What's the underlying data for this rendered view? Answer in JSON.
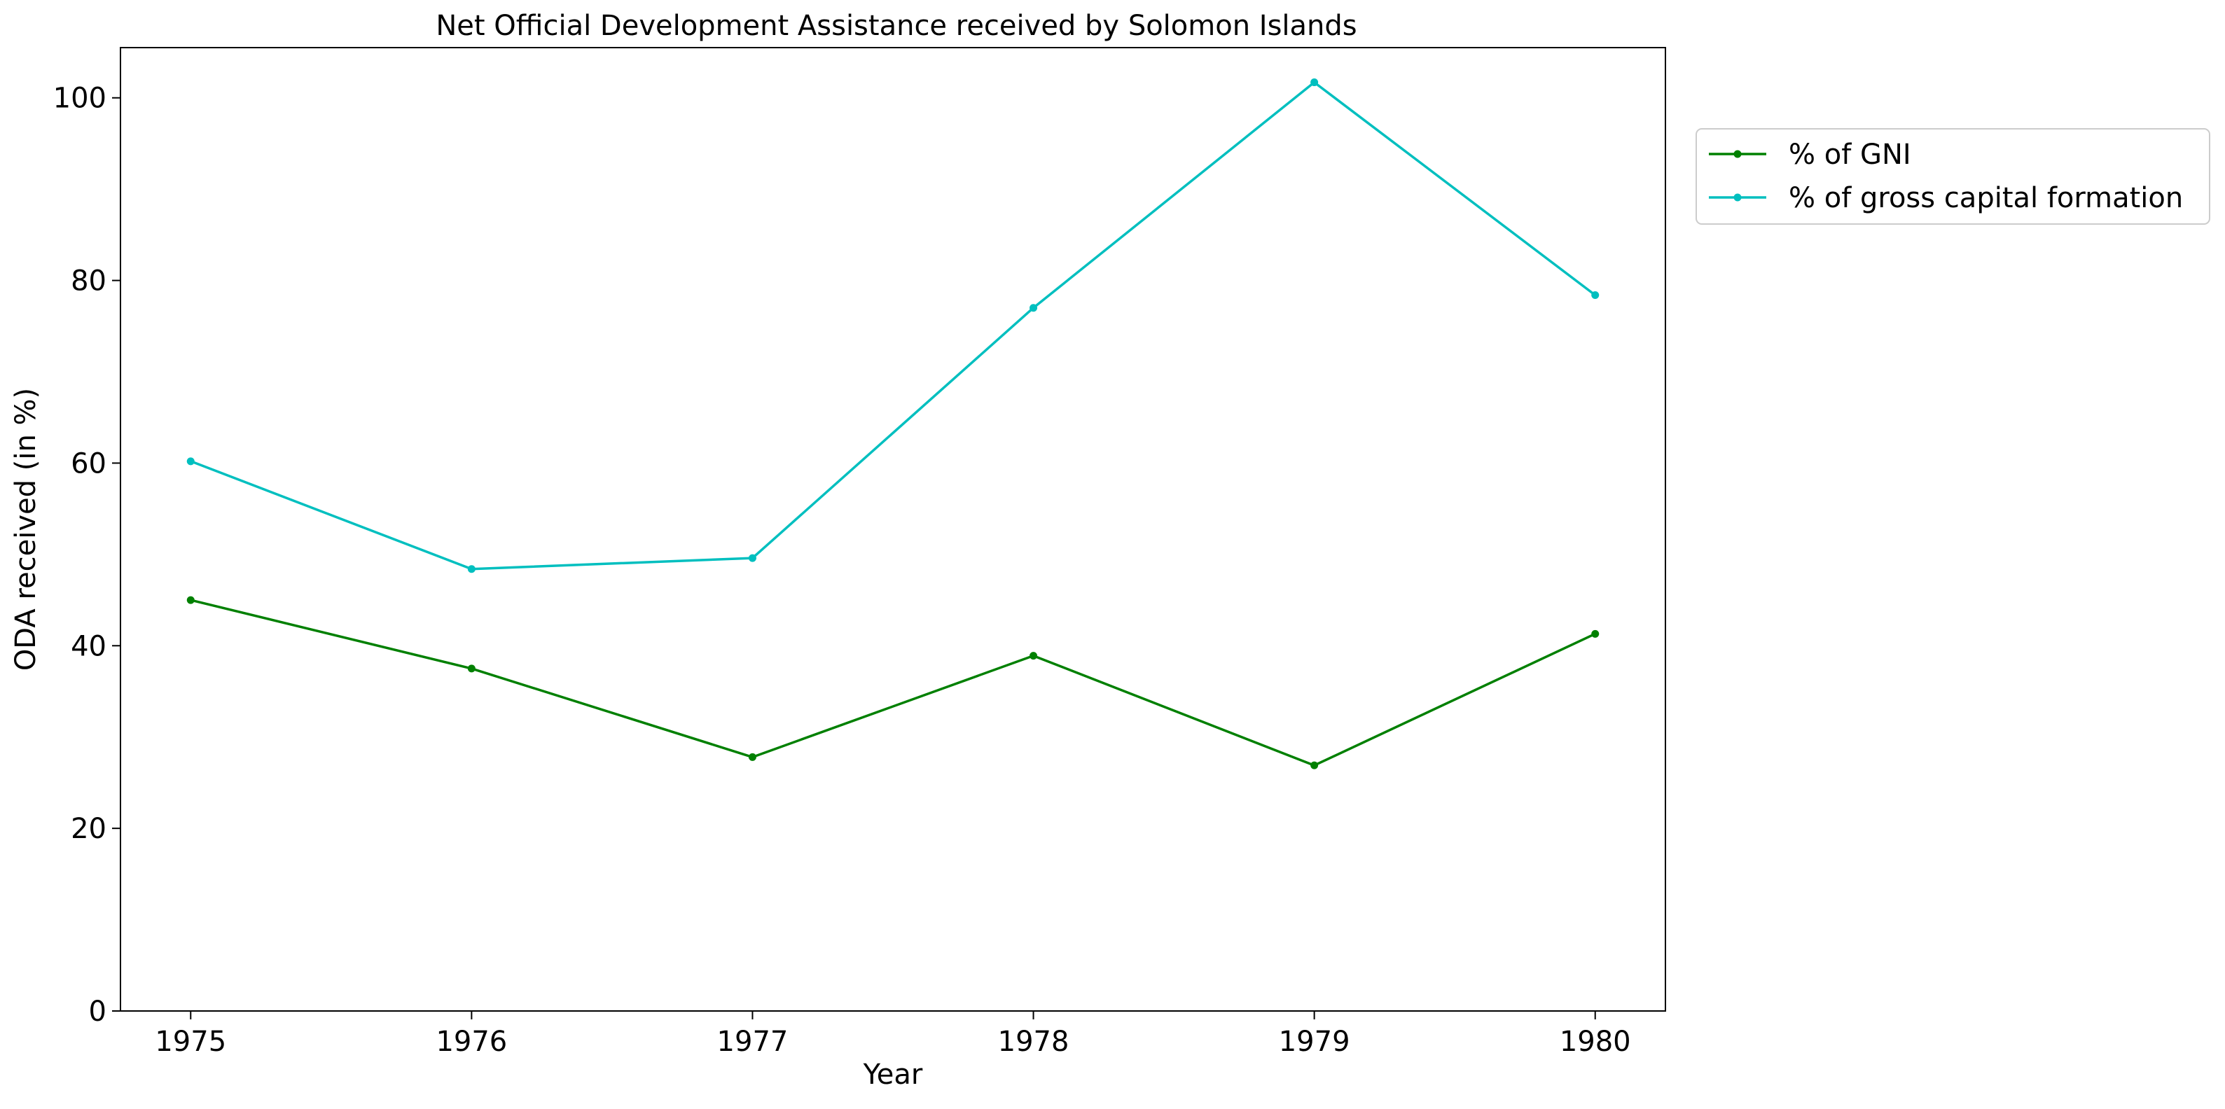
{
  "chart_data": {
    "type": "line",
    "title": "Net Official Development Assistance received by Solomon Islands",
    "xlabel": "Year",
    "ylabel": "ODA received (in %)",
    "x": [
      1975,
      1976,
      1977,
      1978,
      1979,
      1980
    ],
    "x_tick_labels": [
      "1975",
      "1976",
      "1977",
      "1978",
      "1979",
      "1980"
    ],
    "y_ticks": [
      0,
      20,
      40,
      60,
      80,
      100
    ],
    "y_tick_labels": [
      "0",
      "20",
      "40",
      "60",
      "80",
      "100"
    ],
    "xlim": [
      1974.75,
      1980.25
    ],
    "ylim": [
      0,
      105.5
    ],
    "grid": false,
    "legend_position": "outside top-right",
    "series": [
      {
        "name": "% of GNI",
        "color": "#008000",
        "values": [
          45.0,
          37.5,
          27.8,
          38.9,
          26.9,
          41.3
        ]
      },
      {
        "name": "% of gross capital formation",
        "color": "#00bfbf",
        "values": [
          60.2,
          48.4,
          49.6,
          77.0,
          101.7,
          78.4
        ]
      }
    ]
  }
}
